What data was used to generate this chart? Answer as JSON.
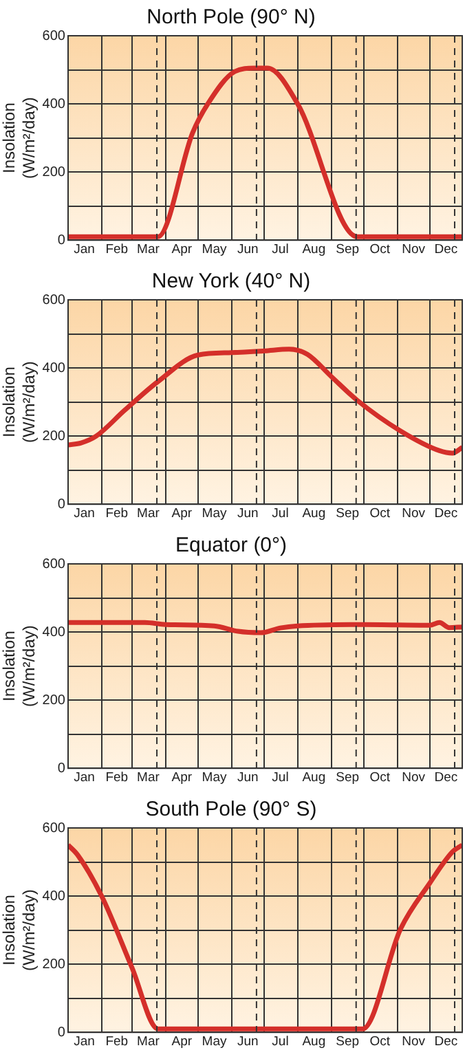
{
  "chart_data": [
    {
      "type": "line",
      "title": "North Pole (90° N)",
      "ylabel": "Insolation (W/m²/day)",
      "xlim": [
        "--01-01",
        "--12-31"
      ],
      "ylim": [
        0,
        600
      ],
      "xticks": [
        {
          "value": "--01-01",
          "label": null
        },
        {
          "value": "--01-16",
          "label": "Jan"
        },
        {
          "value": "--02-01",
          "label": null
        },
        {
          "value": "--02-15",
          "label": "Feb"
        },
        {
          "value": "--03-01",
          "label": null
        },
        {
          "value": "--03-16",
          "label": "Mar"
        },
        {
          "value": "--04-01",
          "label": null
        },
        {
          "value": "--04-16",
          "label": "Apr"
        },
        {
          "value": "--05-01",
          "label": null
        },
        {
          "value": "--05-16",
          "label": "May"
        },
        {
          "value": "--06-01",
          "label": null
        },
        {
          "value": "--06-16",
          "label": "Jun"
        },
        {
          "value": "--07-01",
          "label": null
        },
        {
          "value": "--07-16",
          "label": "Jul"
        },
        {
          "value": "--08-01",
          "label": null
        },
        {
          "value": "--08-16",
          "label": "Aug"
        },
        {
          "value": "--09-01",
          "label": null
        },
        {
          "value": "--09-16",
          "label": "Sep"
        },
        {
          "value": "--10-01",
          "label": null
        },
        {
          "value": "--10-16",
          "label": "Oct"
        },
        {
          "value": "--11-01",
          "label": null
        },
        {
          "value": "--11-16",
          "label": "Nov"
        },
        {
          "value": "--12-01",
          "label": null
        },
        {
          "value": "--12-16",
          "label": "Dec"
        },
        {
          "value": "--12-31",
          "label": null
        }
      ],
      "yticks": [
        0,
        {
          "value": 100,
          "label": null
        },
        200,
        {
          "value": 300,
          "label": null
        },
        400,
        {
          "value": 500,
          "label": null
        },
        600
      ],
      "grid": true,
      "legend": false,
      "ref_lines": [
        {
          "axis": "x",
          "value": "--03-24",
          "line_style": "dashed",
          "color": "#333333"
        },
        {
          "axis": "x",
          "value": "--06-24",
          "line_style": "dashed",
          "color": "#333333"
        },
        {
          "axis": "x",
          "value": "--09-24",
          "line_style": "dashed",
          "color": "#333333"
        },
        {
          "axis": "x",
          "value": "--12-24",
          "line_style": "dashed",
          "color": "#333333"
        }
      ],
      "series": [
        {
          "color": "#d42f2a",
          "x": [
            "--01-01",
            "--03-25",
            "--04-26",
            "--05-10",
            "--06-04",
            "--06-22",
            "--07-04",
            "--08-01",
            "--09-25",
            "--12-31"
          ],
          "values": [
            10,
            10,
            315,
            400,
            495,
            505,
            505,
            400,
            10,
            10
          ]
        }
      ]
    },
    {
      "type": "line",
      "title": "New York (40° N)",
      "ylabel": "Insolation (W/m²/day)",
      "xlim": [
        "--01-01",
        "--12-31"
      ],
      "ylim": [
        0,
        600
      ],
      "xticks": [
        {
          "value": "--01-01",
          "label": null
        },
        {
          "value": "--01-16",
          "label": "Jan"
        },
        {
          "value": "--02-01",
          "label": null
        },
        {
          "value": "--02-15",
          "label": "Feb"
        },
        {
          "value": "--03-01",
          "label": null
        },
        {
          "value": "--03-16",
          "label": "Mar"
        },
        {
          "value": "--04-01",
          "label": null
        },
        {
          "value": "--04-16",
          "label": "Apr"
        },
        {
          "value": "--05-01",
          "label": null
        },
        {
          "value": "--05-16",
          "label": "May"
        },
        {
          "value": "--06-01",
          "label": null
        },
        {
          "value": "--06-16",
          "label": "Jun"
        },
        {
          "value": "--07-01",
          "label": null
        },
        {
          "value": "--07-16",
          "label": "Jul"
        },
        {
          "value": "--08-01",
          "label": null
        },
        {
          "value": "--08-16",
          "label": "Aug"
        },
        {
          "value": "--09-01",
          "label": null
        },
        {
          "value": "--09-16",
          "label": "Sep"
        },
        {
          "value": "--10-01",
          "label": null
        },
        {
          "value": "--10-16",
          "label": "Oct"
        },
        {
          "value": "--11-01",
          "label": null
        },
        {
          "value": "--11-16",
          "label": "Nov"
        },
        {
          "value": "--12-01",
          "label": null
        },
        {
          "value": "--12-16",
          "label": "Dec"
        },
        {
          "value": "--12-31",
          "label": null
        }
      ],
      "yticks": [
        0,
        {
          "value": 100,
          "label": null
        },
        200,
        {
          "value": 300,
          "label": null
        },
        400,
        {
          "value": 500,
          "label": null
        },
        600
      ],
      "grid": true,
      "legend": false,
      "ref_lines": [
        {
          "axis": "x",
          "value": "--03-24",
          "line_style": "dashed",
          "color": "#333333"
        },
        {
          "axis": "x",
          "value": "--06-24",
          "line_style": "dashed",
          "color": "#333333"
        },
        {
          "axis": "x",
          "value": "--09-24",
          "line_style": "dashed",
          "color": "#333333"
        },
        {
          "axis": "x",
          "value": "--12-24",
          "line_style": "dashed",
          "color": "#333333"
        }
      ],
      "series": [
        {
          "color": "#d42f2a",
          "x": [
            "--01-01",
            "--01-13",
            "--01-27",
            "--02-22",
            "--03-25",
            "--05-01",
            "--06-01",
            "--07-01",
            "--07-24",
            "--08-10",
            "--09-01",
            "--09-25",
            "--11-04",
            "--12-10",
            "--12-22",
            "--12-31"
          ],
          "values": [
            174,
            180,
            200,
            275,
            360,
            438,
            445,
            450,
            455,
            440,
            375,
            305,
            215,
            157,
            150,
            167
          ]
        }
      ]
    },
    {
      "type": "line",
      "title": "Equator (0°)",
      "ylabel": "Insolation (W/m²/day)",
      "xlim": [
        "--01-01",
        "--12-31"
      ],
      "ylim": [
        0,
        600
      ],
      "xticks": [
        {
          "value": "--01-01",
          "label": null
        },
        {
          "value": "--01-16",
          "label": "Jan"
        },
        {
          "value": "--02-01",
          "label": null
        },
        {
          "value": "--02-15",
          "label": "Feb"
        },
        {
          "value": "--03-01",
          "label": null
        },
        {
          "value": "--03-16",
          "label": "Mar"
        },
        {
          "value": "--04-01",
          "label": null
        },
        {
          "value": "--04-16",
          "label": "Apr"
        },
        {
          "value": "--05-01",
          "label": null
        },
        {
          "value": "--05-16",
          "label": "May"
        },
        {
          "value": "--06-01",
          "label": null
        },
        {
          "value": "--06-16",
          "label": "Jun"
        },
        {
          "value": "--07-01",
          "label": null
        },
        {
          "value": "--07-16",
          "label": "Jul"
        },
        {
          "value": "--08-01",
          "label": null
        },
        {
          "value": "--08-16",
          "label": "Aug"
        },
        {
          "value": "--09-01",
          "label": null
        },
        {
          "value": "--09-16",
          "label": "Sep"
        },
        {
          "value": "--10-01",
          "label": null
        },
        {
          "value": "--10-16",
          "label": "Oct"
        },
        {
          "value": "--11-01",
          "label": null
        },
        {
          "value": "--11-16",
          "label": "Nov"
        },
        {
          "value": "--12-01",
          "label": null
        },
        {
          "value": "--12-16",
          "label": "Dec"
        },
        {
          "value": "--12-31",
          "label": null
        }
      ],
      "yticks": [
        0,
        {
          "value": 100,
          "label": null
        },
        200,
        {
          "value": 300,
          "label": null
        },
        400,
        {
          "value": 500,
          "label": null
        },
        600
      ],
      "grid": true,
      "legend": false,
      "ref_lines": [
        {
          "axis": "x",
          "value": "--03-24",
          "line_style": "dashed",
          "color": "#333333"
        },
        {
          "axis": "x",
          "value": "--06-24",
          "line_style": "dashed",
          "color": "#333333"
        },
        {
          "axis": "x",
          "value": "--09-24",
          "line_style": "dashed",
          "color": "#333333"
        },
        {
          "axis": "x",
          "value": "--12-24",
          "line_style": "dashed",
          "color": "#333333"
        }
      ],
      "series": [
        {
          "color": "#d42f2a",
          "x": [
            "--01-01",
            "--03-13",
            "--04-01",
            "--05-16",
            "--06-07",
            "--06-28",
            "--07-16",
            "--08-01",
            "--10-01",
            "--12-01",
            "--12-10",
            "--12-19",
            "--12-31"
          ],
          "values": [
            428,
            428,
            422,
            418,
            402,
            398,
            412,
            418,
            422,
            420,
            428,
            413,
            415
          ]
        }
      ]
    },
    {
      "type": "line",
      "title": "South Pole (90° S)",
      "ylabel": "Insolation (W/m²/day)",
      "xlim": [
        "--01-01",
        "--12-31"
      ],
      "ylim": [
        0,
        600
      ],
      "xticks": [
        {
          "value": "--01-01",
          "label": null
        },
        {
          "value": "--01-16",
          "label": "Jan"
        },
        {
          "value": "--02-01",
          "label": null
        },
        {
          "value": "--02-15",
          "label": "Feb"
        },
        {
          "value": "--03-01",
          "label": null
        },
        {
          "value": "--03-16",
          "label": "Mar"
        },
        {
          "value": "--04-01",
          "label": null
        },
        {
          "value": "--04-16",
          "label": "Apr"
        },
        {
          "value": "--05-01",
          "label": null
        },
        {
          "value": "--05-16",
          "label": "May"
        },
        {
          "value": "--06-01",
          "label": null
        },
        {
          "value": "--06-16",
          "label": "Jun"
        },
        {
          "value": "--07-01",
          "label": null
        },
        {
          "value": "--07-16",
          "label": "Jul"
        },
        {
          "value": "--08-01",
          "label": null
        },
        {
          "value": "--08-16",
          "label": "Aug"
        },
        {
          "value": "--09-01",
          "label": null
        },
        {
          "value": "--09-16",
          "label": "Sep"
        },
        {
          "value": "--10-01",
          "label": null
        },
        {
          "value": "--10-16",
          "label": "Oct"
        },
        {
          "value": "--11-01",
          "label": null
        },
        {
          "value": "--11-16",
          "label": "Nov"
        },
        {
          "value": "--12-01",
          "label": null
        },
        {
          "value": "--12-16",
          "label": "Dec"
        },
        {
          "value": "--12-31",
          "label": null
        }
      ],
      "yticks": [
        0,
        {
          "value": 100,
          "label": null
        },
        200,
        {
          "value": 300,
          "label": null
        },
        400,
        {
          "value": 500,
          "label": null
        },
        600
      ],
      "grid": true,
      "legend": false,
      "ref_lines": [
        {
          "axis": "x",
          "value": "--03-24",
          "line_style": "dashed",
          "color": "#333333"
        },
        {
          "axis": "x",
          "value": "--06-24",
          "line_style": "dashed",
          "color": "#333333"
        },
        {
          "axis": "x",
          "value": "--09-24",
          "line_style": "dashed",
          "color": "#333333"
        },
        {
          "axis": "x",
          "value": "--12-24",
          "line_style": "dashed",
          "color": "#333333"
        }
      ],
      "series": [
        {
          "color": "#d42f2a",
          "x": [
            "--01-01",
            "--01-10",
            "--02-01",
            "--03-01",
            "--03-25",
            "--09-30",
            "--11-04",
            "--12-01",
            "--12-22",
            "--12-31"
          ],
          "values": [
            550,
            520,
            400,
            190,
            10,
            10,
            303,
            438,
            530,
            550
          ]
        }
      ]
    }
  ]
}
